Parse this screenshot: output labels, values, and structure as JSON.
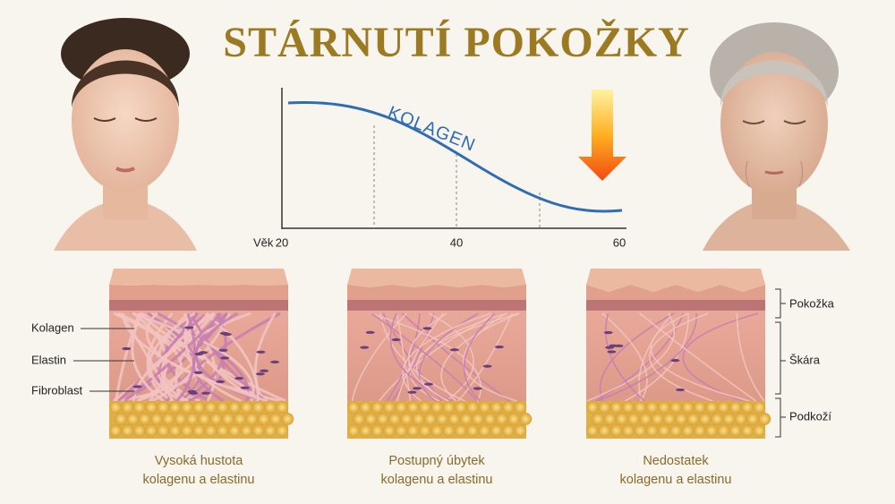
{
  "title": "STÁRNUTÍ POKOŽKY",
  "chart": {
    "curve_label": "KOLAGEN",
    "x_axis_label": "Věk",
    "x_ticks": [
      "20",
      "40",
      "60"
    ]
  },
  "left_labels": [
    "Kolagen",
    "Elastin",
    "Fibroblast"
  ],
  "right_labels": [
    "Pokožka",
    "Škára",
    "Podkoží"
  ],
  "panels": [
    {
      "caption_line1": "Vysoká hustota",
      "caption_line2": "kolagenu a elastinu"
    },
    {
      "caption_line1": "Postupný úbytek",
      "caption_line2": "kolagenu a elastinu"
    },
    {
      "caption_line1": "Nedostatek",
      "caption_line2": "kolagenu a elastinu"
    }
  ]
}
